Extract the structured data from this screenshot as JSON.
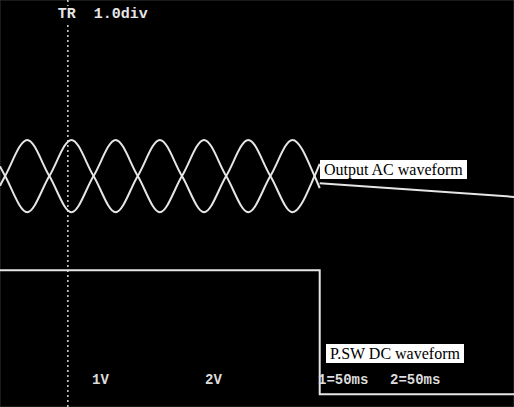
{
  "chart_data": {
    "type": "line",
    "xlim": [
      0,
      500
    ],
    "xticks": [
      0,
      50,
      100,
      150,
      200,
      250,
      300,
      350,
      400,
      450,
      500
    ],
    "ylim": [
      0,
      8
    ],
    "yticks": [
      0,
      1,
      2,
      3,
      4,
      5,
      6,
      7,
      8
    ],
    "grid": true,
    "tick_labels": false,
    "trigger": {
      "label": "TR",
      "x": 66,
      "offset_label": "1.0div"
    },
    "labels": [
      "Output AC waveform",
      "P.SW DC waveform"
    ],
    "readouts": [
      "1V",
      "2V",
      "1=50ms",
      "2=50ms"
    ],
    "series": [
      {
        "color": "#e6e6e6",
        "line_style": "smooth",
        "x": [
          0,
          5,
          26.5,
          48,
          69.5,
          91,
          112.5,
          134,
          155.5,
          177,
          198.5,
          220,
          241.5,
          263,
          284.5,
          306,
          311
        ],
        "values": [
          4.35,
          4.54,
          5.25,
          4.54,
          3.83,
          4.54,
          5.25,
          4.54,
          3.83,
          4.54,
          5.25,
          4.54,
          3.83,
          4.54,
          5.25,
          4.54,
          4.3
        ]
      },
      {
        "color": "#e6e6e6",
        "line_style": "smooth",
        "x": [
          0,
          5,
          26.5,
          48,
          69.5,
          91,
          112.5,
          134,
          155.5,
          177,
          198.5,
          220,
          241.5,
          263,
          284.5,
          306,
          311
        ],
        "values": [
          4.73,
          4.54,
          3.83,
          4.54,
          5.25,
          4.54,
          3.83,
          4.54,
          5.25,
          4.54,
          3.83,
          4.54,
          5.25,
          4.54,
          3.83,
          4.54,
          4.78
        ]
      },
      {
        "color": "#e6e6e6",
        "line_style": "solid",
        "x": [
          311,
          500
        ],
        "values": [
          4.4,
          4.13
        ]
      },
      {
        "color": "#e6e6e6",
        "line_style": "solid",
        "x": [
          0,
          311,
          311,
          500
        ],
        "values": [
          2.69,
          2.69,
          0.25,
          0.25
        ]
      }
    ]
  }
}
